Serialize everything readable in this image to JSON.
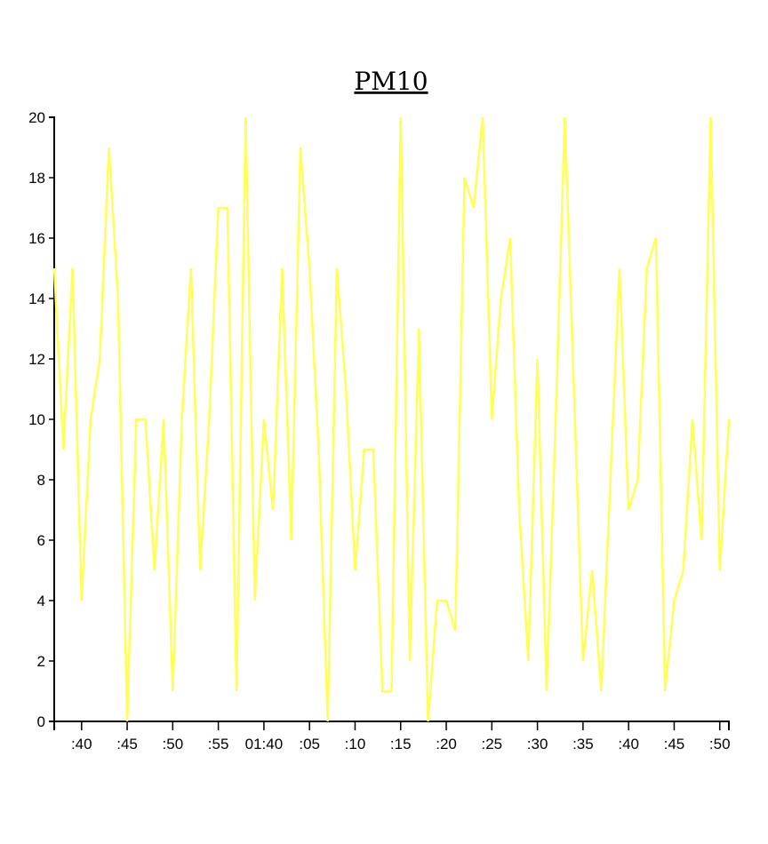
{
  "chart_data": {
    "type": "line",
    "title": "PM10",
    "xlabel": "",
    "ylabel": "",
    "ylim": [
      0,
      20
    ],
    "y_ticks": [
      "0",
      "2",
      "4",
      "6",
      "8",
      "10",
      "12",
      "14",
      "16",
      "18",
      "20"
    ],
    "x_ticks": [
      ":40",
      ":45",
      ":50",
      ":55",
      "01:40",
      ":05",
      ":10",
      ":15",
      ":20",
      ":25",
      ":30",
      ":35",
      ":40",
      ":45",
      ":50"
    ],
    "grid": false,
    "line_color": "#ffff55",
    "series": [
      {
        "values": [
          15,
          9,
          15,
          4,
          10,
          12,
          19,
          14,
          0,
          10,
          10,
          5,
          10,
          1,
          10,
          15,
          5,
          10,
          17,
          17,
          1,
          20,
          4,
          10,
          7,
          15,
          6,
          19,
          15,
          9,
          0,
          15,
          11,
          5,
          9,
          9,
          1,
          1,
          20,
          2,
          13,
          0,
          4,
          4,
          3,
          18,
          17,
          20,
          10,
          14,
          16,
          7,
          2,
          12,
          1,
          10,
          20,
          11,
          2,
          5,
          1,
          8,
          15,
          7,
          8,
          15,
          16,
          1,
          4,
          5,
          10,
          6,
          20,
          5,
          10
        ]
      }
    ]
  }
}
